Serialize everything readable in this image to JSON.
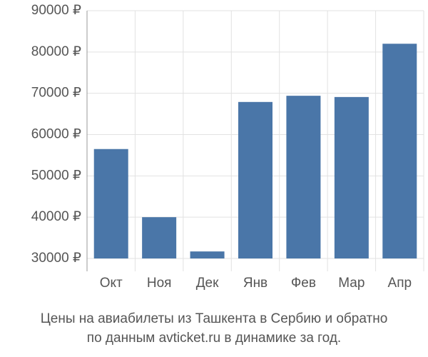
{
  "chart_data": {
    "type": "bar",
    "title": "Цены на авиабилеты из Ташкента в Сербию и обратно",
    "subtitle": "по данным avticket.ru в динамике за год.",
    "categories": [
      "Окт",
      "Ноя",
      "Дек",
      "Янв",
      "Фев",
      "Мар",
      "Апр"
    ],
    "values": [
      56500,
      40000,
      31700,
      67900,
      69400,
      69100,
      82000
    ],
    "color": "#4a76a8",
    "ylim": [
      30000,
      90000
    ],
    "yticks": [
      {
        "value": 30000,
        "label": "30000 ₽"
      },
      {
        "value": 40000,
        "label": "40000 ₽"
      },
      {
        "value": 50000,
        "label": "50000 ₽"
      },
      {
        "value": 60000,
        "label": "60000 ₽"
      },
      {
        "value": 70000,
        "label": "70000 ₽"
      },
      {
        "value": 80000,
        "label": "80000 ₽"
      },
      {
        "value": 90000,
        "label": "90000 ₽"
      }
    ],
    "grid": true
  }
}
